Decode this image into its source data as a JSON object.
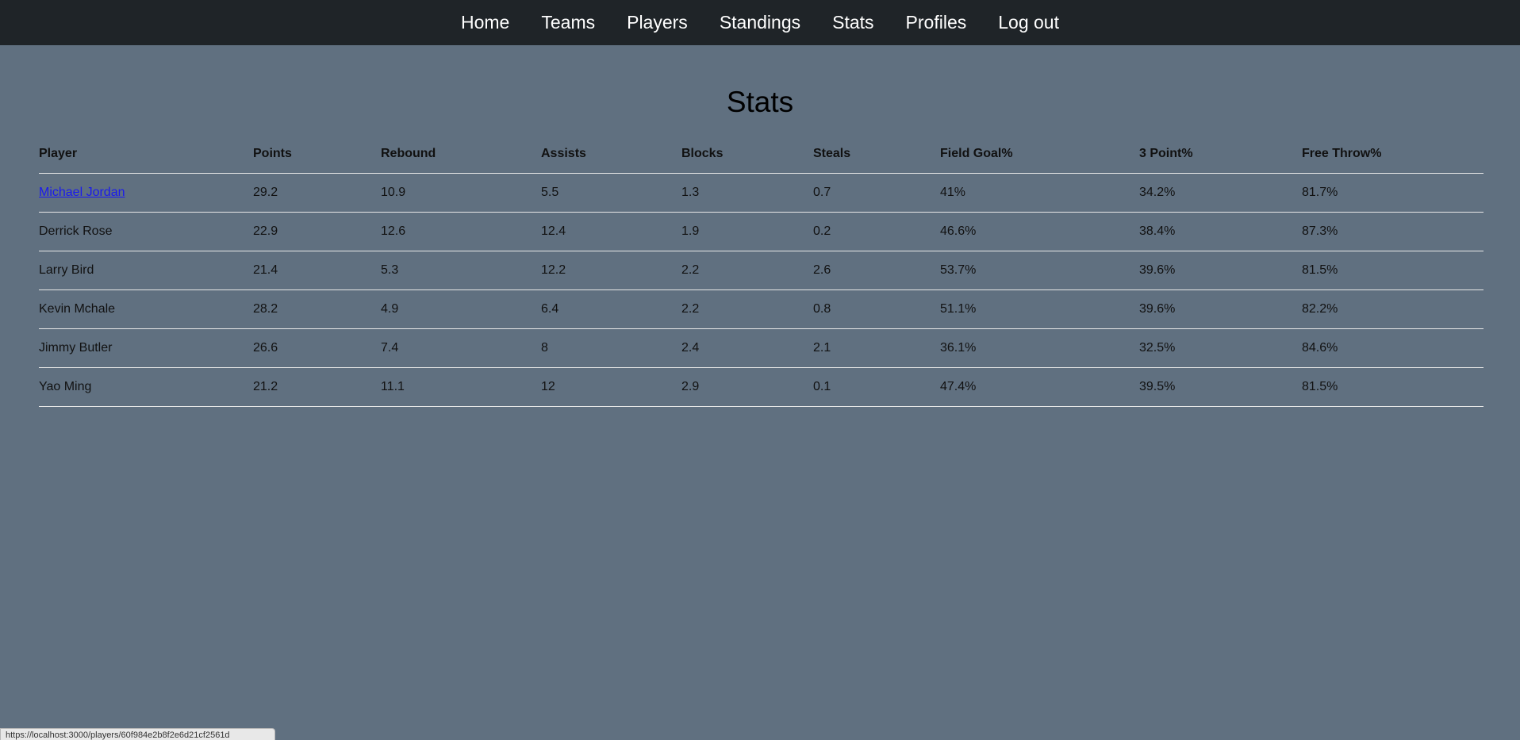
{
  "nav": {
    "items": [
      "Home",
      "Teams",
      "Players",
      "Standings",
      "Stats",
      "Profiles",
      "Log out"
    ]
  },
  "page": {
    "title": "Stats"
  },
  "table": {
    "headers": [
      "Player",
      "Points",
      "Rebound",
      "Assists",
      "Blocks",
      "Steals",
      "Field Goal%",
      "3 Point%",
      "Free Throw%"
    ],
    "rows": [
      [
        "Michael Jordan",
        "29.2",
        "10.9",
        "5.5",
        "1.3",
        "0.7",
        "41%",
        "34.2%",
        "81.7%"
      ],
      [
        "Derrick Rose",
        "22.9",
        "12.6",
        "12.4",
        "1.9",
        "0.2",
        "46.6%",
        "38.4%",
        "87.3%"
      ],
      [
        "Larry Bird",
        "21.4",
        "5.3",
        "12.2",
        "2.2",
        "2.6",
        "53.7%",
        "39.6%",
        "81.5%"
      ],
      [
        "Kevin Mchale",
        "28.2",
        "4.9",
        "6.4",
        "2.2",
        "0.8",
        "51.1%",
        "39.6%",
        "82.2%"
      ],
      [
        "Jimmy Butler",
        "26.6",
        "7.4",
        "8",
        "2.4",
        "2.1",
        "36.1%",
        "32.5%",
        "84.6%"
      ],
      [
        "Yao Ming",
        "21.2",
        "11.1",
        "12",
        "2.9",
        "0.1",
        "47.4%",
        "39.5%",
        "81.5%"
      ]
    ],
    "linked_row_index": 0
  },
  "status_bar": {
    "url": "https://localhost:3000/players/60f984e2b8f2e6d21cf2561d"
  },
  "colors": {
    "page_bg": "#607080",
    "navbar_bg": "#1f2428",
    "link": "#1a1aee",
    "divider": "#e8e8e8"
  }
}
